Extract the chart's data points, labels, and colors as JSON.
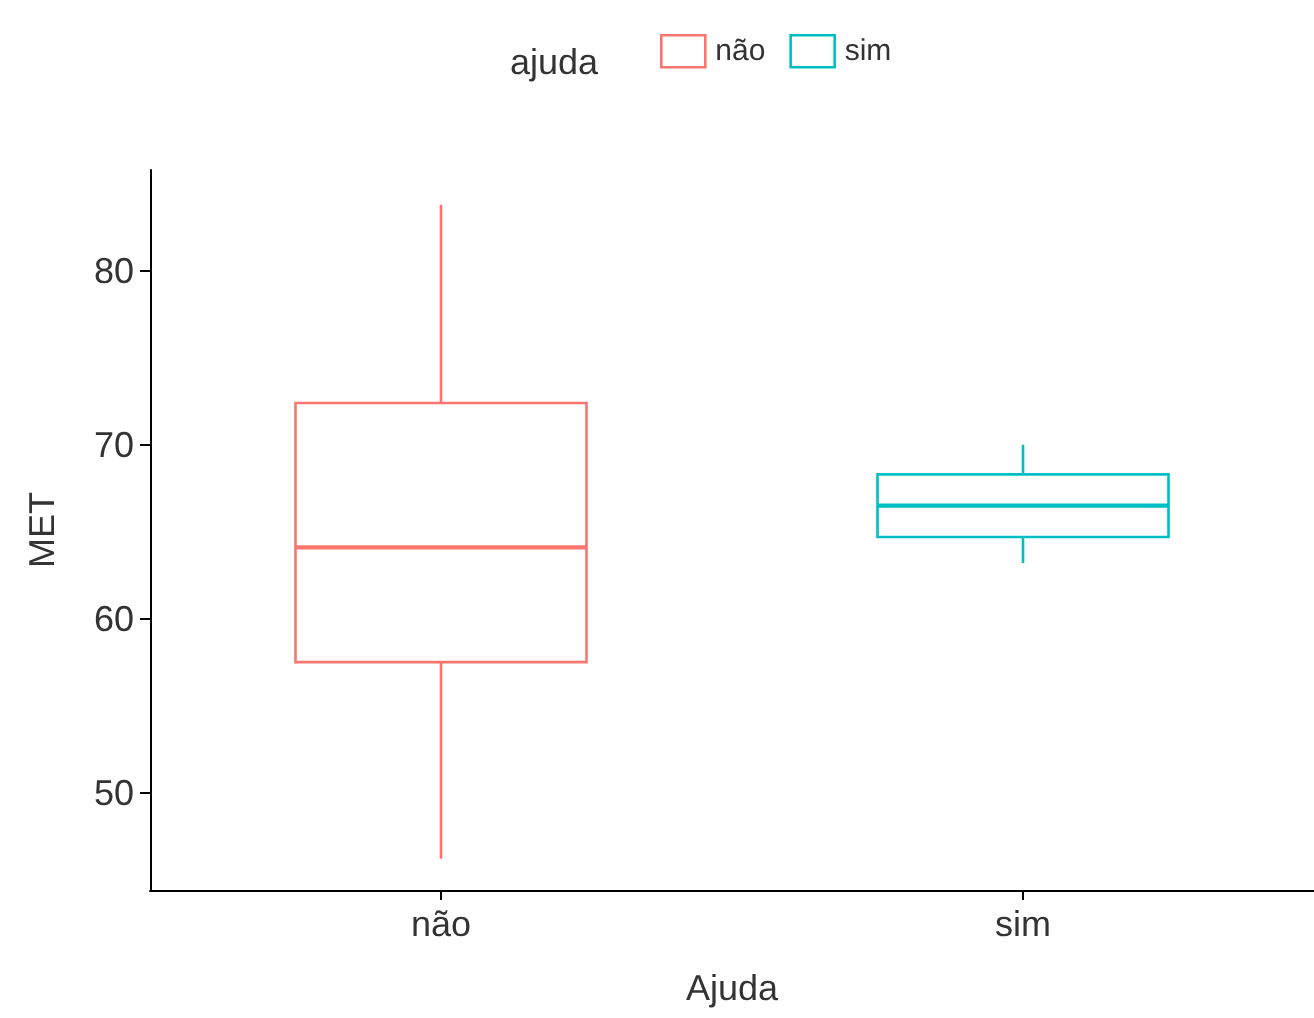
{
  "chart_data": {
    "type": "box",
    "xlabel": "Ajuda",
    "ylabel": "MET",
    "legend_title": "ajuda",
    "categories": [
      "não",
      "sim"
    ],
    "series": [
      {
        "name": "não",
        "color": "#f8766d",
        "boxes": [
          {
            "low": 46.2,
            "q1": 57.5,
            "median": 64.1,
            "q3": 72.4,
            "high": 83.8
          },
          null
        ]
      },
      {
        "name": "sim",
        "color": "#00bfc4",
        "boxes": [
          null,
          {
            "low": 63.2,
            "q1": 64.7,
            "median": 66.5,
            "q3": 68.3,
            "high": 70.0
          }
        ]
      }
    ],
    "ylim": [
      44.4,
      85.8
    ],
    "yticks": [
      50,
      60,
      70,
      80
    ],
    "grid": false,
    "legend": "top"
  }
}
